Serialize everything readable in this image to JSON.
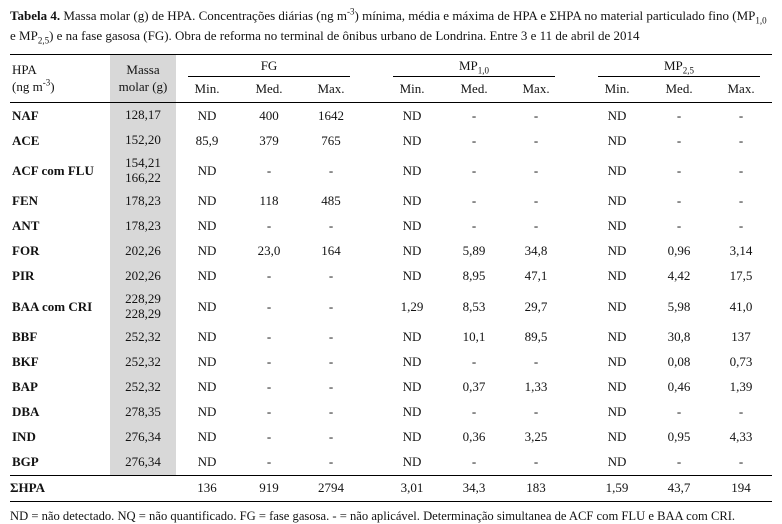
{
  "caption": {
    "label": "Tabela 4.",
    "part1": " Massa molar (g) de HPA. Concentrações diárias (ng m",
    "sup": "-3",
    "part2": ") mínima, média e máxima de HPA e ΣHPA no material particulado fino (MP",
    "sub1": "1,0",
    "part3": " e MP",
    "sub2": "2,5",
    "part4": ") e na fase gasosa (FG). Obra de reforma no terminal de ônibus urbano de Londrina. Entre 3 e 11 de abril de 2014"
  },
  "table": {
    "col1_line1": "HPA",
    "col1_line2_pre": "(ng m",
    "col1_sup": "-3",
    "col1_close": ")",
    "col2_line1": "Massa",
    "col2_line2": "molar (g)",
    "groups": [
      {
        "name": "FG",
        "sub": ""
      },
      {
        "name": "MP",
        "sub": "1,0"
      },
      {
        "name": "MP",
        "sub": "2,5"
      }
    ],
    "subcols": [
      "Min.",
      "Med.",
      "Max."
    ],
    "rows": [
      {
        "name": "NAF",
        "massa": "128,17",
        "values": [
          "ND",
          "400",
          "1642",
          "ND",
          "-",
          "-",
          "ND",
          "-",
          "-"
        ]
      },
      {
        "name": "ACE",
        "massa": "152,20",
        "values": [
          "85,9",
          "379",
          "765",
          "ND",
          "-",
          "-",
          "ND",
          "-",
          "-"
        ]
      },
      {
        "name": "ACF com FLU",
        "massa": "154,21\n166,22",
        "values": [
          "ND",
          "-",
          "-",
          "ND",
          "-",
          "-",
          "ND",
          "-",
          "-"
        ]
      },
      {
        "name": "FEN",
        "massa": "178,23",
        "values": [
          "ND",
          "118",
          "485",
          "ND",
          "-",
          "-",
          "ND",
          "-",
          "-"
        ]
      },
      {
        "name": "ANT",
        "massa": "178,23",
        "values": [
          "ND",
          "-",
          "-",
          "ND",
          "-",
          "-",
          "ND",
          "-",
          "-"
        ]
      },
      {
        "name": "FOR",
        "massa": "202,26",
        "values": [
          "ND",
          "23,0",
          "164",
          "ND",
          "5,89",
          "34,8",
          "ND",
          "0,96",
          "3,14"
        ]
      },
      {
        "name": "PIR",
        "massa": "202,26",
        "values": [
          "ND",
          "-",
          "-",
          "ND",
          "8,95",
          "47,1",
          "ND",
          "4,42",
          "17,5"
        ]
      },
      {
        "name": "BAA com CRI",
        "massa": "228,29\n228,29",
        "values": [
          "ND",
          "-",
          "-",
          "1,29",
          "8,53",
          "29,7",
          "ND",
          "5,98",
          "41,0"
        ]
      },
      {
        "name": "BBF",
        "massa": "252,32",
        "values": [
          "ND",
          "-",
          "-",
          "ND",
          "10,1",
          "89,5",
          "ND",
          "30,8",
          "137"
        ]
      },
      {
        "name": "BKF",
        "massa": "252,32",
        "values": [
          "ND",
          "-",
          "-",
          "ND",
          "-",
          "-",
          "ND",
          "0,08",
          "0,73"
        ]
      },
      {
        "name": "BAP",
        "massa": "252,32",
        "values": [
          "ND",
          "-",
          "-",
          "ND",
          "0,37",
          "1,33",
          "ND",
          "0,46",
          "1,39"
        ]
      },
      {
        "name": "DBA",
        "massa": "278,35",
        "values": [
          "ND",
          "-",
          "-",
          "ND",
          "-",
          "-",
          "ND",
          "-",
          "-"
        ]
      },
      {
        "name": "IND",
        "massa": "276,34",
        "values": [
          "ND",
          "-",
          "-",
          "ND",
          "0,36",
          "3,25",
          "ND",
          "0,95",
          "4,33"
        ]
      },
      {
        "name": "BGP",
        "massa": "276,34",
        "values": [
          "ND",
          "-",
          "-",
          "ND",
          "-",
          "-",
          "ND",
          "-",
          "-"
        ]
      }
    ],
    "total_row": {
      "name": "ΣHPA",
      "massa": "",
      "values": [
        "136",
        "919",
        "2794",
        "3,01",
        "34,3",
        "183",
        "1,59",
        "43,7",
        "194"
      ]
    }
  },
  "footnote": "ND = não detectado. NQ = não quantificado. FG = fase gasosa. - = não aplicável. Determinação simultanea de ACF com FLU e BAA com CRI.",
  "colors": {
    "massa_band": "#d8d8d8",
    "rule": "#000000",
    "text": "#131313"
  }
}
